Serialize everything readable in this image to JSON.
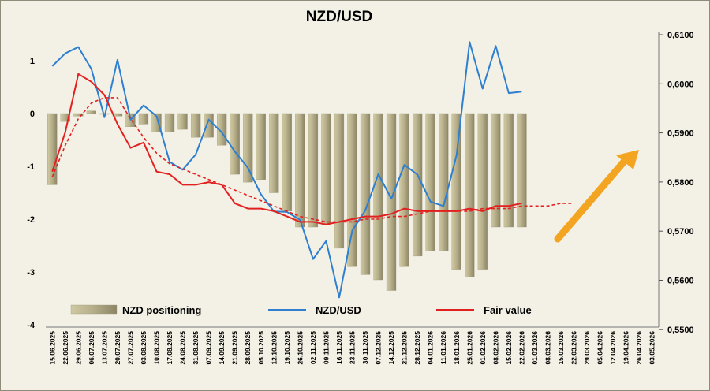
{
  "chart_data": {
    "type": "bar",
    "title": "NZD/USD",
    "xlabel": "",
    "ylabel": "",
    "ylim_left": [
      -4,
      1.5
    ],
    "ylim_right": [
      0.55,
      0.61
    ],
    "left_ticks": [
      1,
      0,
      -1,
      -2,
      -3,
      -4
    ],
    "left_tick_labels": [
      "1",
      "0",
      "-1",
      "-2",
      "-3",
      "-4"
    ],
    "right_ticks": [
      0.61,
      0.6,
      0.59,
      0.58,
      0.57,
      0.56,
      0.55
    ],
    "right_tick_labels": [
      "0,6100",
      "0,6000",
      "0,5900",
      "0,5800",
      "0,5700",
      "0,5600",
      "0,5500"
    ],
    "grid": false,
    "legend_position": "bottom",
    "categories": [
      "15.06.2025",
      "22.06.2025",
      "29.06.2025",
      "06.07.2025",
      "13.07.2025",
      "20.07.2025",
      "27.07.2025",
      "03.08.2025",
      "10.08.2025",
      "17.08.2025",
      "24.08.2025",
      "31.08.2025",
      "07.09.2025",
      "14.09.2025",
      "21.09.2025",
      "28.09.2025",
      "05.10.2025",
      "12.10.2025",
      "19.10.2025",
      "26.10.2025",
      "02.11.2025",
      "09.11.2025",
      "16.11.2025",
      "23.11.2025",
      "30.11.2025",
      "07.12.2025",
      "14.12.2025",
      "21.12.2025",
      "28.12.2025",
      "04.01.2026",
      "11.01.2026",
      "18.01.2026",
      "25.01.2026",
      "01.02.2026",
      "08.02.2026",
      "15.02.2026",
      "22.02.2026",
      "01.03.2026",
      "08.03.2026",
      "15.03.2026",
      "22.03.2026",
      "29.03.2026",
      "05.04.2026",
      "12.04.2026",
      "19.04.2026",
      "26.04.2026",
      "03.05.2026"
    ],
    "series": [
      {
        "name": "NZD positioning",
        "axis": "left",
        "type": "bar",
        "color": "#b7b08a",
        "values": [
          -1.35,
          -0.15,
          -0.05,
          0.05,
          0.0,
          -0.05,
          -0.25,
          -0.2,
          -0.35,
          -0.35,
          -0.3,
          -0.45,
          -0.45,
          -0.6,
          -1.15,
          -1.3,
          -1.25,
          -1.5,
          -1.85,
          -2.15,
          -2.15,
          -2.1,
          -2.55,
          -2.9,
          -3.05,
          -3.15,
          -3.35,
          -2.9,
          -2.7,
          -2.6,
          -2.6,
          -2.95,
          -3.1,
          -2.95,
          -2.15,
          -2.15,
          -2.15,
          null,
          null,
          null,
          null,
          null,
          null,
          null,
          null,
          null,
          null
        ]
      },
      {
        "name": "NZD/USD",
        "axis": "right",
        "type": "line",
        "color": "#2e7fd0",
        "values": [
          0.6036,
          0.6062,
          0.6075,
          0.603,
          0.5932,
          0.6049,
          0.5927,
          0.5956,
          0.5934,
          0.5841,
          0.5825,
          0.5856,
          0.5927,
          0.5901,
          0.5862,
          0.5829,
          0.5775,
          0.574,
          0.5739,
          0.5723,
          0.5643,
          0.568,
          0.5565,
          0.5701,
          0.5742,
          0.5816,
          0.5766,
          0.5835,
          0.5815,
          0.576,
          0.5751,
          0.5855,
          0.6085,
          0.599,
          0.6077,
          0.5981,
          0.5984,
          null,
          null,
          null,
          null,
          null,
          null,
          null,
          null,
          null,
          null
        ]
      },
      {
        "name": "Fair value",
        "axis": "left",
        "type": "line",
        "color": "#e32020",
        "values": [
          -1.1,
          -0.35,
          0.75,
          0.6,
          0.35,
          -0.2,
          -0.65,
          -0.55,
          -1.1,
          -1.15,
          -1.35,
          -1.35,
          -1.3,
          -1.35,
          -1.7,
          -1.8,
          -1.8,
          -1.85,
          -1.95,
          -2.05,
          -2.05,
          -2.1,
          -2.05,
          -2.0,
          -1.95,
          -1.95,
          -1.9,
          -1.8,
          -1.85,
          -1.85,
          -1.85,
          -1.85,
          -1.8,
          -1.85,
          -1.75,
          -1.75,
          -1.7,
          null,
          null,
          null,
          null,
          null,
          null,
          null,
          null,
          null,
          null
        ]
      },
      {
        "name": "Fair value trend",
        "axis": "left",
        "type": "dashed-line",
        "color": "#e32020",
        "values": [
          -1.2,
          -0.6,
          -0.1,
          0.2,
          0.3,
          0.3,
          -0.1,
          -0.45,
          -0.75,
          -0.95,
          -1.05,
          -1.15,
          -1.25,
          -1.35,
          -1.45,
          -1.55,
          -1.65,
          -1.75,
          -1.85,
          -1.95,
          -2.0,
          -2.05,
          -2.05,
          -2.05,
          -2.0,
          -2.0,
          -1.95,
          -1.95,
          -1.9,
          -1.85,
          -1.85,
          -1.85,
          -1.85,
          -1.8,
          -1.8,
          -1.8,
          -1.75,
          -1.75,
          -1.75,
          -1.7,
          -1.7,
          null,
          null,
          null,
          null,
          null,
          null
        ]
      }
    ],
    "annotation": {
      "type": "arrow",
      "color": "#f3a521",
      "direction": "up-right"
    },
    "legend": [
      {
        "label": "NZD positioning",
        "kind": "bar"
      },
      {
        "label": "NZD/USD",
        "kind": "line-blue"
      },
      {
        "label": "Fair value",
        "kind": "line-red"
      }
    ]
  }
}
